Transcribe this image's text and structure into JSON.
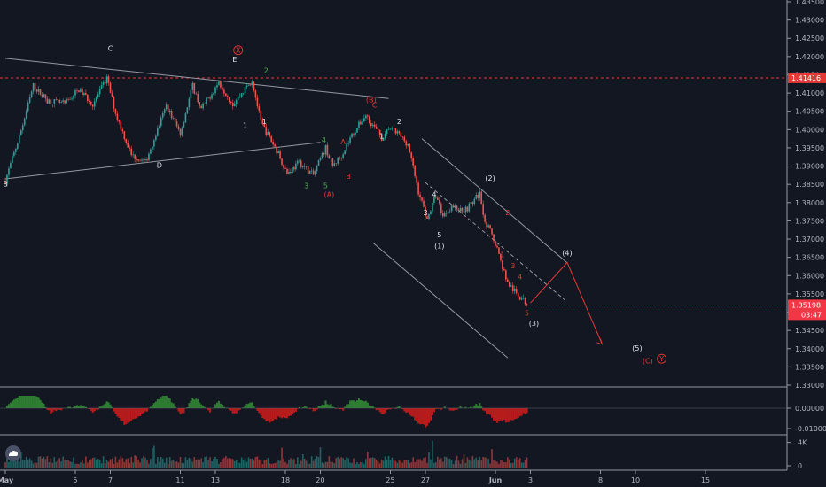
{
  "chart_data": {
    "type": "candlestick",
    "symbol_color_up": "#26a69a",
    "symbol_color_down": "#ef5350",
    "price_axis": {
      "ylim": [
        1.33,
        1.435
      ],
      "ticks": [
        "1.43500",
        "1.43000",
        "1.42500",
        "1.42000",
        "1.41500",
        "1.41000",
        "1.40500",
        "1.40000",
        "1.39500",
        "1.39000",
        "1.38500",
        "1.38000",
        "1.37500",
        "1.37000",
        "1.36500",
        "1.36000",
        "1.35500",
        "1.35000",
        "1.34500",
        "1.34000",
        "1.33500",
        "1.33000"
      ],
      "resistance_label": "1.41416",
      "resistance_value": 1.41416,
      "last_price_label": "1.35198",
      "last_price_value": 1.35198,
      "countdown": "03:47"
    },
    "date_axis": {
      "labels": [
        "May",
        "5",
        "7",
        "11",
        "13",
        "18",
        "20",
        "25",
        "27",
        "Jun",
        "3",
        "8",
        "10",
        "15"
      ],
      "day_index": [
        0,
        2,
        3,
        5,
        6,
        8,
        9,
        11,
        12,
        14,
        15,
        17,
        18,
        20
      ]
    },
    "price_path": {
      "x_day": [
        0,
        0.4,
        0.8,
        1.2,
        1.7,
        2.1,
        2.5,
        2.9,
        3.15,
        3.6,
        4.0,
        4.6,
        5.0,
        5.35,
        5.6,
        6.1,
        6.5,
        7.05,
        7.3,
        7.8,
        8.05,
        8.4,
        8.8,
        9.15,
        9.35,
        9.6,
        9.9,
        10.3,
        10.8,
        10.95,
        11.2,
        11.5,
        11.8,
        12.05,
        12.3,
        12.5,
        12.75,
        13.0,
        13.2,
        13.55,
        13.7,
        14.0,
        14.15,
        14.35,
        14.6,
        14.95
      ],
      "price": [
        1.386,
        1.398,
        1.412,
        1.408,
        1.407,
        1.411,
        1.407,
        1.414,
        1.4045,
        1.393,
        1.391,
        1.4065,
        1.399,
        1.412,
        1.4055,
        1.413,
        1.407,
        1.4135,
        1.402,
        1.3935,
        1.388,
        1.391,
        1.3875,
        1.395,
        1.39,
        1.393,
        1.3985,
        1.404,
        1.397,
        1.4005,
        1.399,
        1.396,
        1.383,
        1.3755,
        1.382,
        1.3765,
        1.379,
        1.378,
        1.3785,
        1.3825,
        1.375,
        1.369,
        1.364,
        1.358,
        1.355,
        1.352
      ]
    },
    "trendlines": [
      {
        "from": [
          0,
          1.4195
        ],
        "to": [
          10.95,
          1.4085
        ],
        "color": "#9598a1"
      },
      {
        "from": [
          0,
          1.3865
        ],
        "to": [
          9.0,
          1.3965
        ],
        "color": "#9598a1"
      },
      {
        "from": [
          11.9,
          1.3975
        ],
        "to": [
          16.05,
          1.3635
        ],
        "color": "#9598a1"
      },
      {
        "from": [
          10.5,
          1.369
        ],
        "to": [
          14.35,
          1.3375
        ],
        "color": "#9598a1"
      },
      {
        "from": [
          12.0,
          1.3855
        ],
        "to": [
          16.0,
          1.3532
        ],
        "color": "#9598a1",
        "dashed": true
      }
    ],
    "projection": {
      "x_day": [
        15.0,
        16.05,
        17.05
      ],
      "price": [
        1.3525,
        1.3636,
        1.3412
      ],
      "color": "#e53935"
    },
    "wave_labels": [
      {
        "text": "B",
        "x": 0.0,
        "price": 1.3845,
        "color": "#e0e3eb"
      },
      {
        "text": "C",
        "x": 3.0,
        "price": 1.4215,
        "color": "#e0e3eb"
      },
      {
        "text": "D",
        "x": 4.4,
        "price": 1.3895,
        "color": "#e0e3eb"
      },
      {
        "text": "E",
        "x": 6.55,
        "price": 1.4185,
        "color": "#e0e3eb"
      },
      {
        "text": "X",
        "x": 6.65,
        "price": 1.421,
        "color": "#e53935",
        "circled": true
      },
      {
        "text": "2",
        "x": 7.45,
        "price": 1.4155,
        "color": "#4caf50"
      },
      {
        "text": "1",
        "x": 6.85,
        "price": 1.4005,
        "color": "#e0e3eb"
      },
      {
        "text": "1",
        "x": 7.4,
        "price": 1.4015,
        "color": "#e0e3eb"
      },
      {
        "text": "4",
        "x": 9.1,
        "price": 1.3965,
        "color": "#4caf50"
      },
      {
        "text": "3",
        "x": 8.6,
        "price": 1.384,
        "color": "#4caf50"
      },
      {
        "text": "5",
        "x": 9.15,
        "price": 1.384,
        "color": "#4caf50"
      },
      {
        "text": "(A)",
        "x": 9.25,
        "price": 1.3815,
        "color": "#e53935"
      },
      {
        "text": "A",
        "x": 9.65,
        "price": 1.396,
        "color": "#e53935"
      },
      {
        "text": "B",
        "x": 9.8,
        "price": 1.3865,
        "color": "#e53935"
      },
      {
        "text": "(B)",
        "x": 10.45,
        "price": 1.4075,
        "color": "#e53935"
      },
      {
        "text": "C",
        "x": 10.55,
        "price": 1.406,
        "color": "#e53935"
      },
      {
        "text": "1",
        "x": 10.75,
        "price": 1.3975,
        "color": "#e0e3eb"
      },
      {
        "text": "2",
        "x": 11.25,
        "price": 1.4015,
        "color": "#e0e3eb"
      },
      {
        "text": "4",
        "x": 12.25,
        "price": 1.3815,
        "color": "#e0e3eb"
      },
      {
        "text": "3",
        "x": 12.0,
        "price": 1.3765,
        "color": "#e0e3eb"
      },
      {
        "text": "5",
        "x": 12.4,
        "price": 1.3705,
        "color": "#e0e3eb"
      },
      {
        "text": "(1)",
        "x": 12.4,
        "price": 1.3675,
        "color": "#e0e3eb"
      },
      {
        "text": "(2)",
        "x": 13.85,
        "price": 1.386,
        "color": "#e0e3eb"
      },
      {
        "text": "2",
        "x": 14.35,
        "price": 1.3765,
        "color": "#e53935"
      },
      {
        "text": "1",
        "x": 14.2,
        "price": 1.365,
        "color": "#e53935"
      },
      {
        "text": "3",
        "x": 14.5,
        "price": 1.362,
        "color": "#e53935"
      },
      {
        "text": "4",
        "x": 14.7,
        "price": 1.359,
        "color": "#e53935"
      },
      {
        "text": "5",
        "x": 14.9,
        "price": 1.349,
        "color": "#e53935"
      },
      {
        "text": "(3)",
        "x": 15.1,
        "price": 1.3462,
        "color": "#e0e3eb"
      },
      {
        "text": "(4)",
        "x": 16.05,
        "price": 1.3655,
        "color": "#e0e3eb"
      },
      {
        "text": "(5)",
        "x": 18.05,
        "price": 1.3395,
        "color": "#e0e3eb"
      },
      {
        "text": "(C)",
        "x": 18.35,
        "price": 1.336,
        "color": "#e53935"
      },
      {
        "text": "Y",
        "x": 18.75,
        "price": 1.3365,
        "color": "#e53935",
        "circled": true
      }
    ],
    "oscillator": {
      "ticks": [
        "0.00000",
        "-0.01000"
      ],
      "ylim": [
        -0.014,
        0.012
      ]
    },
    "volume": {
      "ticks": [
        "4K",
        "0"
      ],
      "ylim": [
        0,
        5000
      ]
    }
  }
}
